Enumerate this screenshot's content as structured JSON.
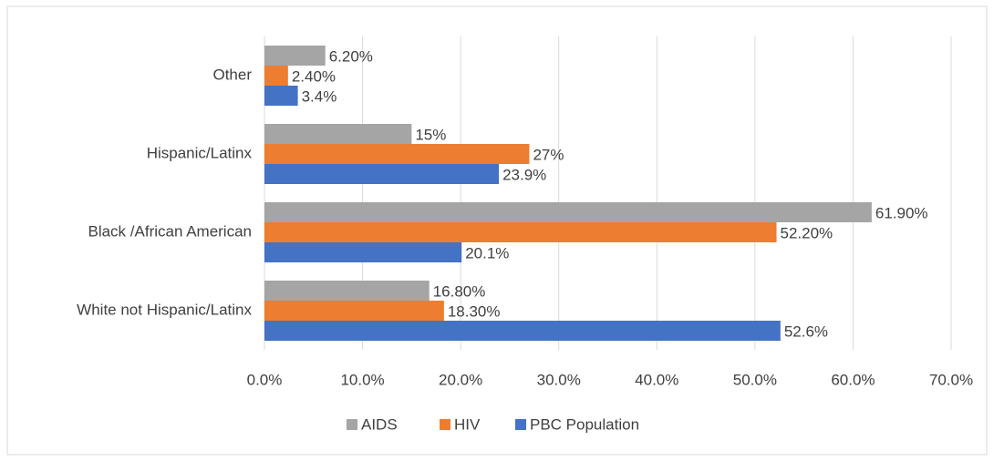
{
  "chart_data": {
    "type": "hbar",
    "categories": [
      "Other",
      "Hispanic/Latinx",
      "Black /African American",
      "White not Hispanic/Latinx"
    ],
    "series": [
      {
        "name": "AIDS",
        "color": "#a5a5a5",
        "values": [
          6.2,
          15,
          61.9,
          16.8
        ],
        "value_labels": [
          "6.20%",
          "15%",
          "61.90%",
          "16.80%"
        ]
      },
      {
        "name": "HIV",
        "color": "#ed7d31",
        "values": [
          2.4,
          27,
          52.2,
          18.3
        ],
        "value_labels": [
          "2.40%",
          "27%",
          "52.20%",
          "18.30%"
        ]
      },
      {
        "name": "PBC Population",
        "color": "#4472c4",
        "values": [
          3.4,
          23.9,
          20.1,
          52.6
        ],
        "value_labels": [
          "3.4%",
          "23.9%",
          "20.1%",
          "52.6%"
        ]
      }
    ],
    "xlim": [
      0,
      70
    ],
    "xticks": [
      {
        "value": 0,
        "label": "0.0%"
      },
      {
        "value": 10,
        "label": "10.0%"
      },
      {
        "value": 20,
        "label": "20.0%"
      },
      {
        "value": 30,
        "label": "30.0%"
      },
      {
        "value": 40,
        "label": "40.0%"
      },
      {
        "value": 50,
        "label": "50.0%"
      },
      {
        "value": 60,
        "label": "60.0%"
      },
      {
        "value": 70,
        "label": "70.0%"
      }
    ],
    "grid": true,
    "legend": "bottom"
  }
}
